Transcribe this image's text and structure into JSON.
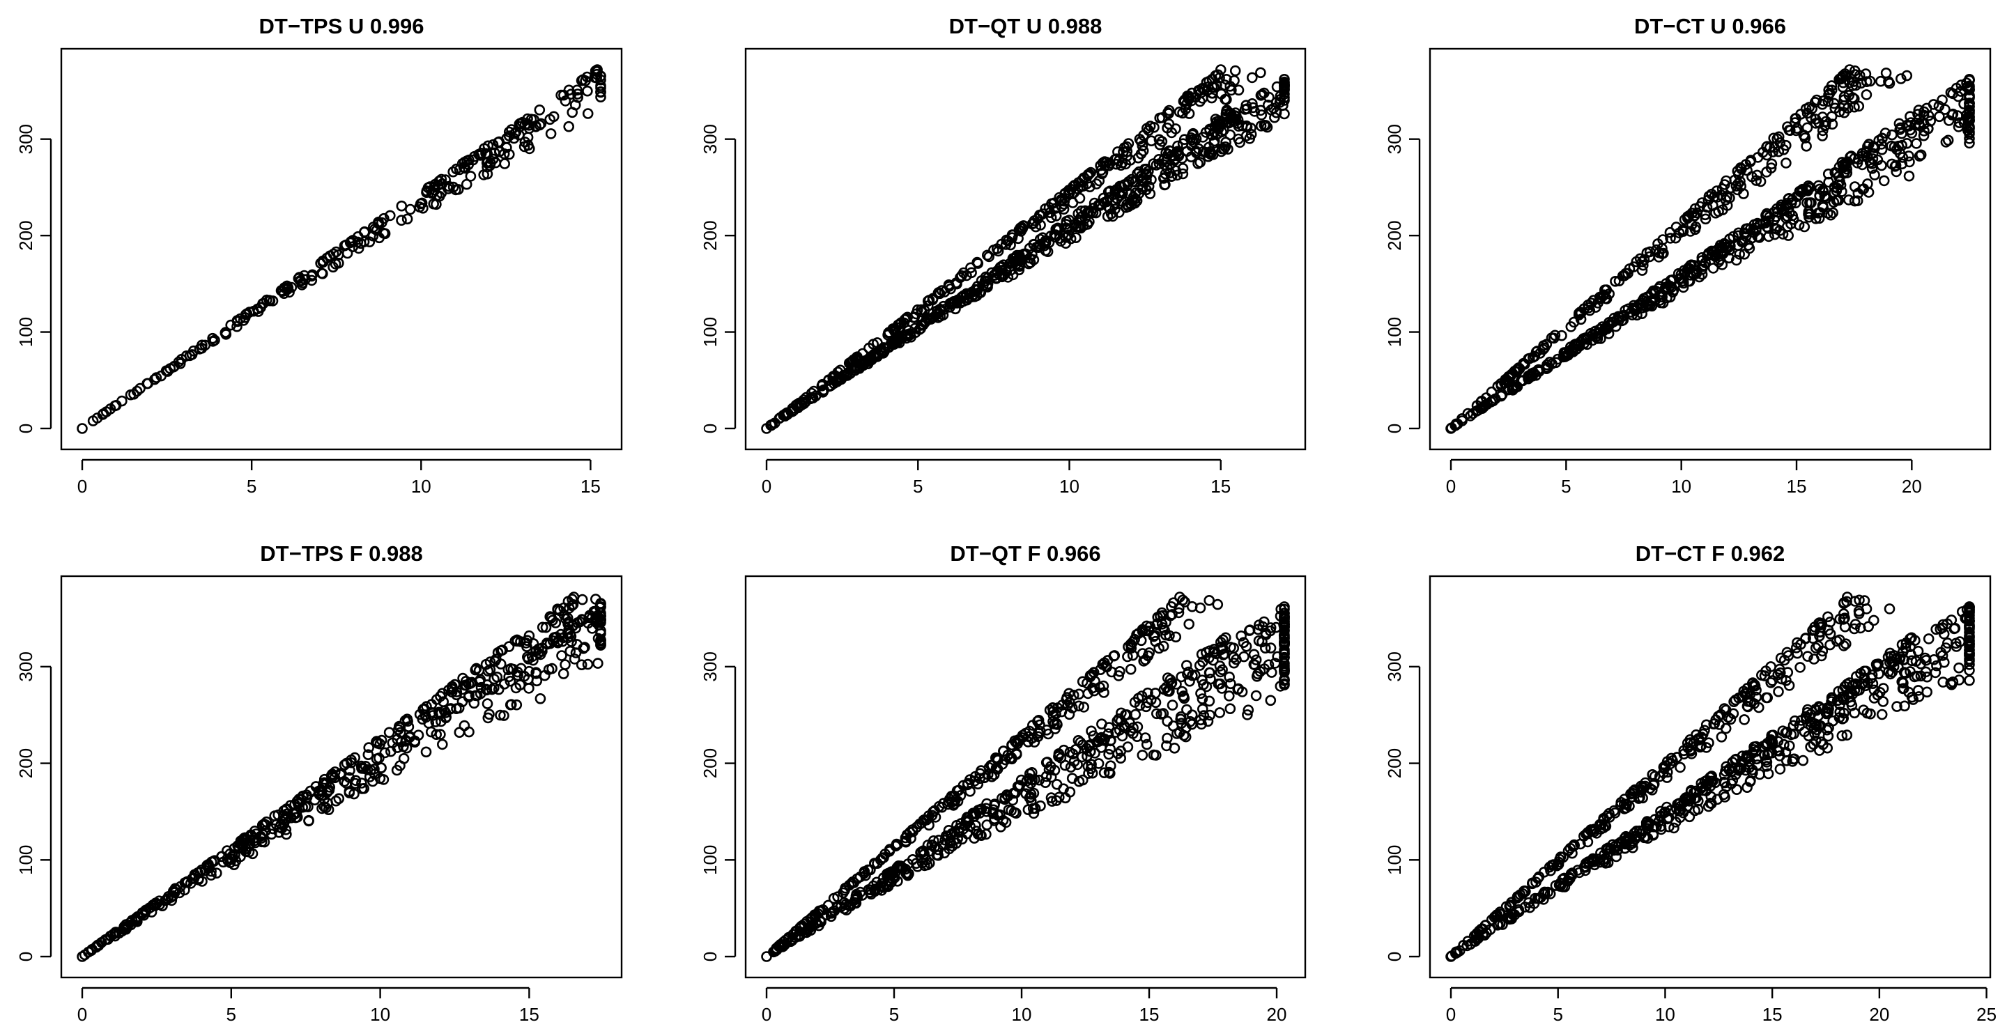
{
  "chart_data": [
    {
      "type": "scatter",
      "title": "DT−TPS U 0.996",
      "xlim": [
        0,
        15.3
      ],
      "ylim": [
        0,
        372
      ],
      "xticks": [
        0,
        5,
        10,
        15
      ],
      "yticks": [
        0,
        100,
        200,
        300
      ],
      "xlabel": "",
      "ylabel": "",
      "series": [
        {
          "point_shape": "open-circle",
          "bands": [
            {
              "x_end": 15.2,
              "y_end": 372,
              "spread": 0.1
            }
          ]
        }
      ]
    },
    {
      "type": "scatter",
      "title": "DT−QT U 0.988",
      "xlim": [
        0,
        17.1
      ],
      "ylim": [
        0,
        372
      ],
      "xticks": [
        0,
        5,
        10,
        15
      ],
      "yticks": [
        0,
        100,
        200,
        300
      ],
      "xlabel": "",
      "ylabel": "",
      "series": [
        {
          "point_shape": "open-circle",
          "bands": [
            {
              "x_end": 15,
              "y_end": 372,
              "spread": 0.08
            },
            {
              "x_end": 15.2,
              "y_end": 330,
              "spread": 0.12
            },
            {
              "x_end": 17.1,
              "y_end": 362,
              "spread": 0.1
            }
          ]
        }
      ]
    },
    {
      "type": "scatter",
      "title": "DT−CT U 0.966",
      "xlim": [
        0,
        22.5
      ],
      "ylim": [
        0,
        372
      ],
      "xticks": [
        0,
        5,
        10,
        15,
        20
      ],
      "yticks": [
        0,
        100,
        200,
        300
      ],
      "xlabel": "",
      "ylabel": "",
      "series": [
        {
          "point_shape": "open-circle",
          "bands": [
            {
              "x_end": 17.3,
              "y_end": 372,
              "spread": 0.12
            },
            {
              "x_end": 20.3,
              "y_end": 330,
              "spread": 0.2
            },
            {
              "x_end": 22.5,
              "y_end": 362,
              "spread": 0.15
            }
          ]
        }
      ]
    },
    {
      "type": "scatter",
      "title": "DT−TPS F 0.988",
      "xlim": [
        0,
        17.4
      ],
      "ylim": [
        0,
        372
      ],
      "xticks": [
        0,
        5,
        10,
        15
      ],
      "yticks": [
        0,
        100,
        200,
        300
      ],
      "xlabel": "",
      "ylabel": "",
      "series": [
        {
          "point_shape": "open-circle",
          "bands": [
            {
              "x_end": 16.5,
              "y_end": 372,
              "spread": 0.1
            },
            {
              "x_end": 17.4,
              "y_end": 362,
              "spread": 0.18
            }
          ]
        }
      ]
    },
    {
      "type": "scatter",
      "title": "DT−QT F 0.966",
      "xlim": [
        0,
        20.3
      ],
      "ylim": [
        0,
        372
      ],
      "xticks": [
        0,
        5,
        10,
        15,
        20
      ],
      "yticks": [
        0,
        100,
        200,
        300
      ],
      "xlabel": "",
      "ylabel": "",
      "series": [
        {
          "point_shape": "open-circle",
          "bands": [
            {
              "x_end": 16.2,
              "y_end": 372,
              "spread": 0.1
            },
            {
              "x_end": 18,
              "y_end": 330,
              "spread": 0.35
            },
            {
              "x_end": 20.3,
              "y_end": 362,
              "spread": 0.3
            }
          ]
        }
      ]
    },
    {
      "type": "scatter",
      "title": "DT−CT F 0.962",
      "xlim": [
        0,
        24.2
      ],
      "ylim": [
        0,
        372
      ],
      "xticks": [
        0,
        5,
        10,
        15,
        20,
        25
      ],
      "yticks": [
        0,
        100,
        200,
        300
      ],
      "xlabel": "",
      "ylabel": "",
      "series": [
        {
          "point_shape": "open-circle",
          "bands": [
            {
              "x_end": 18.5,
              "y_end": 372,
              "spread": 0.12
            },
            {
              "x_end": 21.5,
              "y_end": 330,
              "spread": 0.25
            },
            {
              "x_end": 24.2,
              "y_end": 362,
              "spread": 0.2
            }
          ]
        }
      ]
    }
  ]
}
